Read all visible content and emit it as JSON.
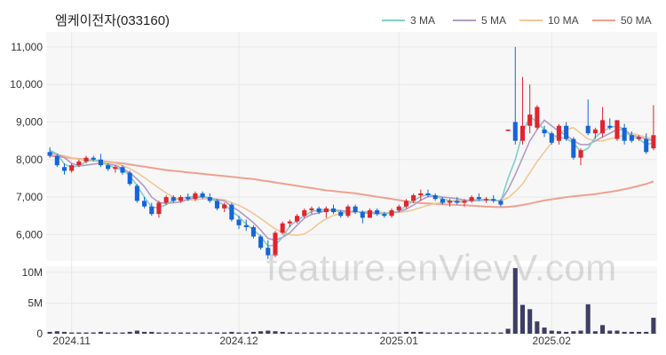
{
  "title": "엠케이전자(033160)",
  "watermark": "feature.enVievV.com",
  "colors": {
    "up": "#e0242f",
    "down": "#1565d8",
    "volume": "#3d3d66",
    "ma3": "#7fcfc8",
    "ma5": "#b39ac8",
    "ma10": "#f2c796",
    "ma50": "#f0a090",
    "grid": "#e8e8e8",
    "plot_bg": "#f7f7f7"
  },
  "chart_data": {
    "type": "candlestick",
    "legend": [
      {
        "key": "ma3",
        "label": "3 MA"
      },
      {
        "key": "ma5",
        "label": "5 MA"
      },
      {
        "key": "ma10",
        "label": "10 MA"
      },
      {
        "key": "ma50",
        "label": "50 MA"
      }
    ],
    "price_axis": {
      "ticks": [
        6000,
        7000,
        8000,
        9000,
        10000,
        11000
      ],
      "labels": [
        "6,000",
        "7,000",
        "8,000",
        "9,000",
        "10,000",
        "11,000"
      ],
      "ylim": [
        5300,
        11400
      ]
    },
    "volume_axis": {
      "ticks": [
        0,
        5,
        10
      ],
      "labels": [
        "0",
        "5M",
        "10M"
      ],
      "ylim": [
        0,
        11
      ],
      "unit": "M"
    },
    "x_ticks": [
      {
        "index": 3,
        "label": "2024.11"
      },
      {
        "index": 26,
        "label": "2024.12"
      },
      {
        "index": 48,
        "label": "2025.01"
      },
      {
        "index": 69,
        "label": "2025.02"
      }
    ],
    "candles": [
      [
        8200,
        8330,
        8050,
        8100
      ],
      [
        8100,
        8150,
        7800,
        7850
      ],
      [
        7800,
        7900,
        7600,
        7700
      ],
      [
        7700,
        7900,
        7650,
        7850
      ],
      [
        7850,
        8000,
        7800,
        7950
      ],
      [
        7950,
        8100,
        7900,
        8050
      ],
      [
        8050,
        8100,
        7950,
        8000
      ],
      [
        8000,
        8150,
        7800,
        7850
      ],
      [
        7850,
        7900,
        7700,
        7750
      ],
      [
        7750,
        7850,
        7650,
        7800
      ],
      [
        7800,
        7850,
        7600,
        7650
      ],
      [
        7650,
        7700,
        7300,
        7350
      ],
      [
        7300,
        7350,
        6850,
        6900
      ],
      [
        6900,
        7000,
        6700,
        6750
      ],
      [
        6750,
        6850,
        6500,
        6550
      ],
      [
        6550,
        6900,
        6450,
        6850
      ],
      [
        6850,
        7050,
        6800,
        7000
      ],
      [
        7000,
        7050,
        6850,
        6900
      ],
      [
        6900,
        7050,
        6850,
        7000
      ],
      [
        7000,
        7100,
        6900,
        6950
      ],
      [
        6950,
        7150,
        6900,
        7100
      ],
      [
        7100,
        7150,
        6950,
        7000
      ],
      [
        7000,
        7100,
        6850,
        6900
      ],
      [
        6900,
        6950,
        6650,
        6700
      ],
      [
        6700,
        6850,
        6600,
        6800
      ],
      [
        6800,
        6850,
        6350,
        6400
      ],
      [
        6400,
        6500,
        6150,
        6250
      ],
      [
        6250,
        6400,
        6100,
        6200
      ],
      [
        6200,
        6250,
        5900,
        5950
      ],
      [
        5950,
        6000,
        5600,
        5650
      ],
      [
        5650,
        5850,
        5350,
        5450
      ],
      [
        5450,
        6100,
        5400,
        6050
      ],
      [
        6050,
        6350,
        6000,
        6300
      ],
      [
        6300,
        6400,
        6200,
        6350
      ],
      [
        6350,
        6550,
        6300,
        6500
      ],
      [
        6500,
        6700,
        6450,
        6650
      ],
      [
        6650,
        6750,
        6550,
        6700
      ],
      [
        6700,
        6750,
        6550,
        6600
      ],
      [
        6600,
        6750,
        6450,
        6700
      ],
      [
        6700,
        6800,
        6550,
        6600
      ],
      [
        6600,
        6650,
        6450,
        6500
      ],
      [
        6500,
        6800,
        6450,
        6750
      ],
      [
        6750,
        6800,
        6550,
        6600
      ],
      [
        6600,
        6650,
        6300,
        6450
      ],
      [
        6450,
        6700,
        6450,
        6650
      ],
      [
        6650,
        6700,
        6500,
        6550
      ],
      [
        6550,
        6600,
        6450,
        6500
      ],
      [
        6500,
        6700,
        6450,
        6650
      ],
      [
        6650,
        6800,
        6600,
        6750
      ],
      [
        6750,
        6950,
        6700,
        6900
      ],
      [
        6900,
        7100,
        6850,
        7050
      ],
      [
        7050,
        7200,
        6900,
        7100
      ],
      [
        7100,
        7200,
        7000,
        7050
      ],
      [
        7050,
        7100,
        6900,
        6950
      ],
      [
        6950,
        7000,
        6800,
        6850
      ],
      [
        6850,
        6950,
        6750,
        6900
      ],
      [
        6900,
        7000,
        6800,
        6850
      ],
      [
        6850,
        6950,
        6750,
        6900
      ],
      [
        6900,
        7050,
        6850,
        7000
      ],
      [
        7000,
        7100,
        6900,
        6950
      ],
      [
        6950,
        7000,
        6850,
        6950
      ],
      [
        6950,
        7050,
        6850,
        6900
      ],
      [
        6900,
        6950,
        6750,
        6800
      ],
      [
        8800,
        8800,
        8750,
        8800
      ],
      [
        9000,
        11000,
        8400,
        8500
      ],
      [
        8500,
        10200,
        8400,
        8900
      ],
      [
        8900,
        10000,
        8700,
        9200
      ],
      [
        8850,
        9450,
        8800,
        9400
      ],
      [
        8800,
        8900,
        8600,
        8700
      ],
      [
        8700,
        8750,
        8400,
        8450
      ],
      [
        8500,
        8950,
        8400,
        8900
      ],
      [
        8900,
        9000,
        8500,
        8550
      ],
      [
        8550,
        8600,
        8000,
        8050
      ],
      [
        8050,
        8300,
        7850,
        8250
      ],
      [
        8900,
        9600,
        8650,
        8700
      ],
      [
        8700,
        8850,
        8550,
        8800
      ],
      [
        8700,
        9400,
        8600,
        9050
      ],
      [
        8900,
        9100,
        8800,
        8850
      ],
      [
        8550,
        9050,
        8500,
        9050
      ],
      [
        8850,
        8950,
        8400,
        8500
      ],
      [
        8650,
        8750,
        8450,
        8500
      ],
      [
        8550,
        8650,
        8500,
        8600
      ],
      [
        8550,
        8700,
        8150,
        8200
      ],
      [
        8300,
        9450,
        8250,
        8650
      ]
    ],
    "volume": [
      0.3,
      0.4,
      0.3,
      0.2,
      0.2,
      0.2,
      0.2,
      0.3,
      0.2,
      0.2,
      0.2,
      0.3,
      0.5,
      0.3,
      0.3,
      0.2,
      0.2,
      0.2,
      0.2,
      0.2,
      0.2,
      0.2,
      0.2,
      0.2,
      0.2,
      0.3,
      0.2,
      0.2,
      0.3,
      0.4,
      0.5,
      0.4,
      0.3,
      0.2,
      0.2,
      0.2,
      0.2,
      0.2,
      0.2,
      0.2,
      0.2,
      0.2,
      0.2,
      0.2,
      0.2,
      0.2,
      0.2,
      0.2,
      0.2,
      0.3,
      0.3,
      0.3,
      0.2,
      0.2,
      0.2,
      0.2,
      0.2,
      0.2,
      0.2,
      0.2,
      0.2,
      0.2,
      0.2,
      0.8,
      10.7,
      4.7,
      4.0,
      2.0,
      1.0,
      0.5,
      0.4,
      0.3,
      0.4,
      0.5,
      4.8,
      0.4,
      1.4,
      0.5,
      0.5,
      0.3,
      0.3,
      0.3,
      0.3,
      2.6
    ],
    "ma3": [
      8250,
      8150,
      7880,
      7800,
      7830,
      7950,
      8000,
      7950,
      7850,
      7780,
      7730,
      7580,
      7300,
      7000,
      6730,
      6720,
      6800,
      6920,
      6970,
      7000,
      7020,
      7020,
      6980,
      6870,
      6800,
      6630,
      6480,
      6280,
      6130,
      5950,
      5700,
      5720,
      5930,
      6230,
      6380,
      6500,
      6620,
      6650,
      6670,
      6650,
      6600,
      6620,
      6620,
      6580,
      6570,
      6550,
      6570,
      6570,
      6630,
      6770,
      6900,
      7020,
      7070,
      7030,
      6950,
      6900,
      6870,
      6870,
      6920,
      6930,
      6930,
      6930,
      6880,
      7500,
      8000,
      8700,
      9150,
      9000,
      8800,
      8650,
      8600,
      8550,
      8450,
      8200,
      8300,
      8600,
      8750,
      8850,
      8900,
      8800,
      8600,
      8550,
      8400,
      8450
    ],
    "ma5": [
      8200,
      8150,
      8050,
      7900,
      7830,
      7850,
      7880,
      7900,
      7880,
      7850,
      7760,
      7650,
      7480,
      7280,
      7000,
      6860,
      6830,
      6850,
      6870,
      6940,
      6990,
      7000,
      6980,
      6930,
      6900,
      6750,
      6630,
      6480,
      6320,
      6120,
      5900,
      5850,
      5930,
      6050,
      6250,
      6440,
      6540,
      6580,
      6640,
      6660,
      6640,
      6620,
      6610,
      6600,
      6590,
      6570,
      6560,
      6580,
      6610,
      6680,
      6790,
      6920,
      7010,
      7030,
      7000,
      6980,
      6960,
      6920,
      6900,
      6910,
      6920,
      6920,
      6900,
      7200,
      7600,
      8050,
      8500,
      8800,
      9050,
      8900,
      8750,
      8650,
      8500,
      8400,
      8400,
      8500,
      8600,
      8700,
      8800,
      8800,
      8650,
      8600,
      8550,
      8500
    ],
    "ma10": [
      8150,
      8120,
      8100,
      8050,
      8000,
      7980,
      7960,
      7940,
      7920,
      7900,
      7840,
      7760,
      7650,
      7520,
      7380,
      7240,
      7110,
      7000,
      6940,
      6920,
      6930,
      6950,
      6960,
      6950,
      6930,
      6850,
      6780,
      6680,
      6560,
      6430,
      6290,
      6150,
      6060,
      6000,
      5980,
      6020,
      6140,
      6300,
      6420,
      6510,
      6570,
      6590,
      6600,
      6610,
      6610,
      6600,
      6590,
      6590,
      6590,
      6620,
      6660,
      6720,
      6780,
      6830,
      6860,
      6890,
      6910,
      6920,
      6930,
      6940,
      6940,
      6920,
      6900,
      6980,
      7150,
      7350,
      7650,
      7950,
      8200,
      8450,
      8700,
      8800,
      8850,
      8700,
      8550,
      8500,
      8500,
      8550,
      8600,
      8650,
      8700,
      8650,
      8600,
      8550
    ],
    "ma50": [
      8100,
      8080,
      8060,
      8040,
      8020,
      8000,
      7980,
      7960,
      7940,
      7920,
      7900,
      7870,
      7840,
      7810,
      7780,
      7750,
      7720,
      7700,
      7680,
      7660,
      7640,
      7620,
      7600,
      7580,
      7560,
      7540,
      7520,
      7500,
      7480,
      7450,
      7420,
      7390,
      7360,
      7330,
      7300,
      7270,
      7240,
      7210,
      7180,
      7160,
      7140,
      7120,
      7100,
      7070,
      7040,
      7010,
      6980,
      6950,
      6920,
      6890,
      6860,
      6840,
      6830,
      6820,
      6810,
      6800,
      6790,
      6780,
      6770,
      6760,
      6750,
      6740,
      6730,
      6740,
      6760,
      6790,
      6830,
      6870,
      6910,
      6940,
      6970,
      7000,
      7020,
      7040,
      7060,
      7080,
      7110,
      7140,
      7170,
      7210,
      7250,
      7300,
      7350,
      7420
    ]
  }
}
